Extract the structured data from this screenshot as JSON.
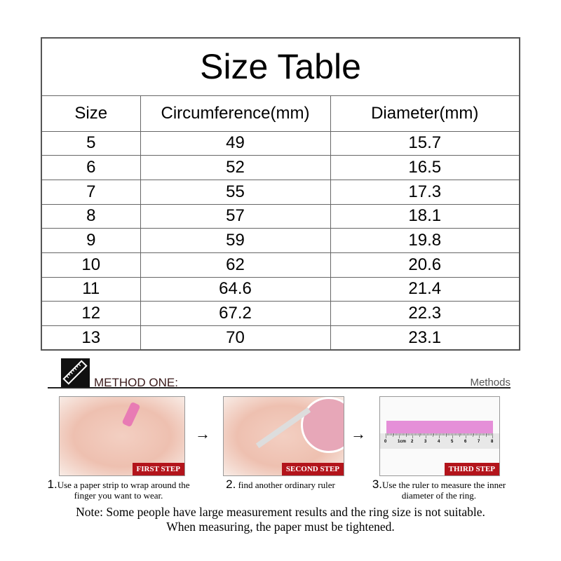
{
  "table": {
    "title": "Size Table",
    "headers": [
      "Size",
      "Circumference(mm)",
      "Diameter(mm)"
    ],
    "rows": [
      [
        "5",
        "49",
        "15.7"
      ],
      [
        "6",
        "52",
        "16.5"
      ],
      [
        "7",
        "55",
        "17.3"
      ],
      [
        "8",
        "57",
        "18.1"
      ],
      [
        "9",
        "59",
        "19.8"
      ],
      [
        "10",
        "62",
        "20.6"
      ],
      [
        "11",
        "64.6",
        "21.4"
      ],
      [
        "12",
        "67.2",
        "22.3"
      ],
      [
        "13",
        "70",
        "23.1"
      ]
    ]
  },
  "method": {
    "icon": "ruler-icon",
    "title": "METHOD ONE:",
    "tag": "Methods",
    "arrow": "→",
    "ruler_labels": [
      "0",
      "1cm",
      "2",
      "3",
      "4",
      "5",
      "6",
      "7",
      "8"
    ],
    "steps": [
      {
        "badge": "FIRST STEP",
        "num": "1.",
        "text": "Use a paper strip to wrap around the finger you want to wear."
      },
      {
        "badge": "SECOND STEP",
        "num": "2.",
        "text": " find another ordinary ruler"
      },
      {
        "badge": "THIRD STEP",
        "num": "3.",
        "text": "Use the ruler to measure the inner diameter of the ring."
      }
    ]
  },
  "note": {
    "line1": "Note: Some people have large measurement results and the ring size is not suitable.",
    "line2": "When measuring, the paper must be tightened."
  },
  "colors": {
    "badge": "#b3141b",
    "strip": "#e58fd8"
  }
}
